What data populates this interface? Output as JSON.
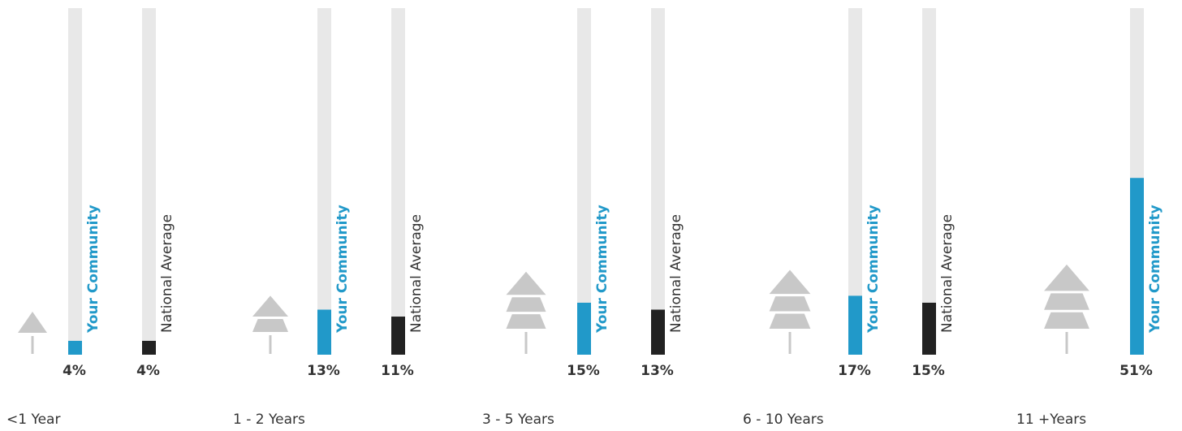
{
  "chart_data": {
    "type": "bar",
    "title": "",
    "categories": [
      "<1 Year",
      "1 - 2 Years",
      "3 - 5 Years",
      "6 - 10 Years",
      "11 +Years"
    ],
    "ylim": [
      0,
      100
    ],
    "series": [
      {
        "name": "Your Community",
        "values": [
          4,
          13,
          15,
          17,
          51
        ],
        "labels": [
          "4%",
          "13%",
          "15%",
          "17%",
          "51%"
        ]
      },
      {
        "name": "National Average",
        "values": [
          4,
          11,
          13,
          15,
          null
        ],
        "labels": [
          "4%",
          "11%",
          "13%",
          "15%",
          ""
        ]
      }
    ],
    "colors": {
      "community": "#2199c9",
      "national": "#222222",
      "track": "#e8e8e8",
      "tree": "#c8c8c8"
    },
    "icons": [
      "tree-icon",
      "tree-icon",
      "tree-icon",
      "tree-icon",
      "tree-icon"
    ]
  }
}
